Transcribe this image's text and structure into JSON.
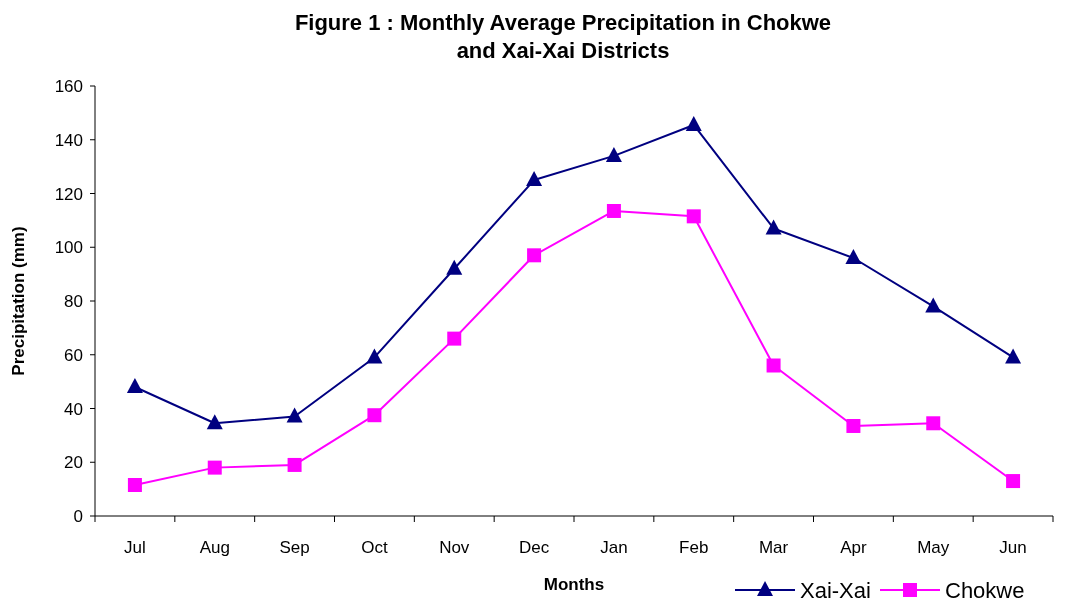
{
  "chart_data": {
    "type": "line",
    "title": "Figure 1 : Monthly Average Precipitation in Chokwe and Xai-Xai Districts",
    "xlabel": "Months",
    "ylabel": "Precipitation (mm)",
    "categories": [
      "Jul",
      "Aug",
      "Sep",
      "Oct",
      "Nov",
      "Dec",
      "Jan",
      "Feb",
      "Mar",
      "Apr",
      "May",
      "Jun"
    ],
    "series": [
      {
        "name": "Xai-Xai",
        "color": "#000080",
        "marker": "triangle",
        "values": [
          48,
          34.5,
          37,
          59,
          92,
          125,
          134,
          145.5,
          107,
          96,
          78,
          59
        ]
      },
      {
        "name": "Chokwe",
        "color": "#ff00ff",
        "marker": "square",
        "values": [
          11.5,
          18,
          19,
          37.5,
          66,
          97,
          113.5,
          111.5,
          56,
          33.5,
          34.5,
          13
        ]
      }
    ],
    "ylim": [
      0,
      160
    ],
    "yticks": [
      0,
      20,
      40,
      60,
      80,
      100,
      120,
      140,
      160
    ],
    "grid": false,
    "legend": "bottom right",
    "line_style": "solid"
  }
}
